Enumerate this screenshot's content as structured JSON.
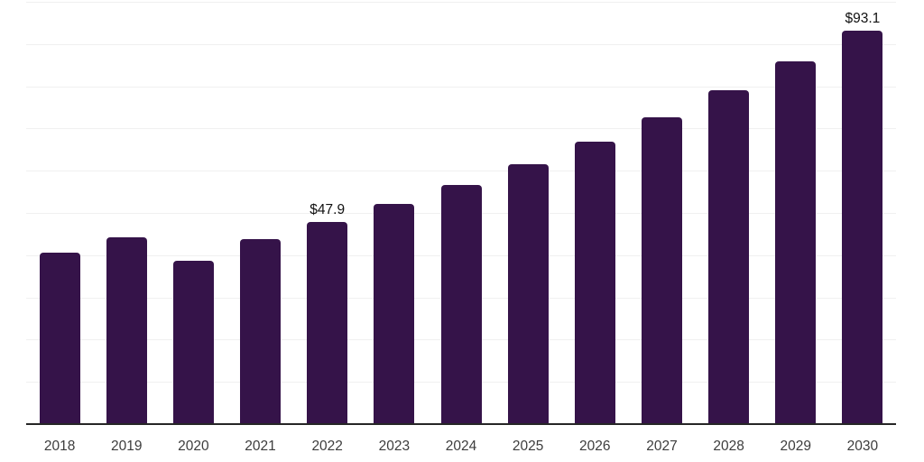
{
  "chart_data": {
    "type": "bar",
    "categories": [
      "2018",
      "2019",
      "2020",
      "2021",
      "2022",
      "2023",
      "2024",
      "2025",
      "2026",
      "2027",
      "2028",
      "2029",
      "2030"
    ],
    "values": [
      40.5,
      44.3,
      38.6,
      43.9,
      47.9,
      52.1,
      56.6,
      61.5,
      66.9,
      72.7,
      79.0,
      85.9,
      93.1
    ],
    "data_labels": [
      {
        "category": "2022",
        "text": "$47.9"
      },
      {
        "category": "2030",
        "text": "$93.1"
      }
    ],
    "title": "",
    "xlabel": "",
    "ylabel": "",
    "ylim": [
      0,
      100
    ],
    "gridline_step": 10,
    "grid": true,
    "legend": false,
    "y_tick_labels_visible": false,
    "colors": {
      "bar": "#351349",
      "gridline": "#f0f0f0",
      "axis_line": "#262626",
      "tick_label": "#3d3d3d",
      "value_label": "#111111",
      "background": "#ffffff"
    }
  }
}
